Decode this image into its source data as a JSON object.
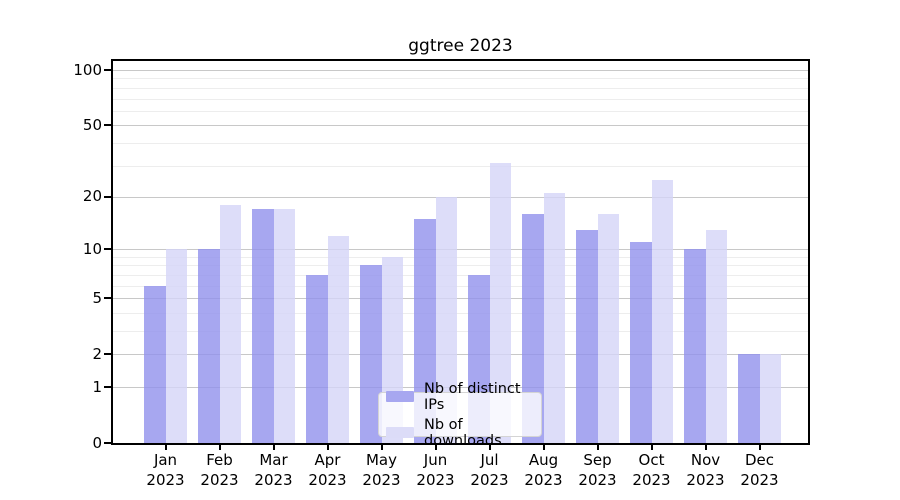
{
  "title": "ggtree 2023",
  "chart_data": {
    "type": "bar",
    "title": "ggtree 2023",
    "x_months": [
      "Jan",
      "Feb",
      "Mar",
      "Apr",
      "May",
      "Jun",
      "Jul",
      "Aug",
      "Sep",
      "Oct",
      "Nov",
      "Dec"
    ],
    "x_year": "2023",
    "series": [
      {
        "name": "Nb of distinct IPs",
        "color": "#a7a7f0",
        "fill": "rgba(145,145,236,0.8)",
        "values": [
          6,
          10,
          17,
          7,
          8,
          15,
          7,
          16,
          13,
          11,
          10,
          2
        ]
      },
      {
        "name": "Nb of downloads",
        "color": "#dcdcf8",
        "fill": "rgba(213,213,248,0.8)",
        "values": [
          10,
          18,
          17,
          12,
          9,
          20,
          31,
          21,
          16,
          25,
          13,
          2
        ]
      }
    ],
    "yscale": "log1p",
    "ylim": [
      0,
      113
    ],
    "y_major_ticks": [
      0,
      1,
      2,
      5,
      10,
      20,
      50,
      100
    ],
    "y_minor_ticks": [
      3,
      4,
      6,
      7,
      8,
      9,
      30,
      40,
      60,
      70,
      80,
      90
    ],
    "grid": true,
    "legend_position": "lower center"
  },
  "colors": {
    "background": "#ffffff",
    "bar_ips": "#a7a7f0",
    "bar_downloads": "#dcdcf8",
    "major_grid": "#c8c8c8",
    "minor_grid": "#ededed",
    "spine": "#000000",
    "text": "#000000",
    "legend_bg": "rgba(255,255,255,0.8)",
    "legend_border": "#d4d4d4"
  }
}
